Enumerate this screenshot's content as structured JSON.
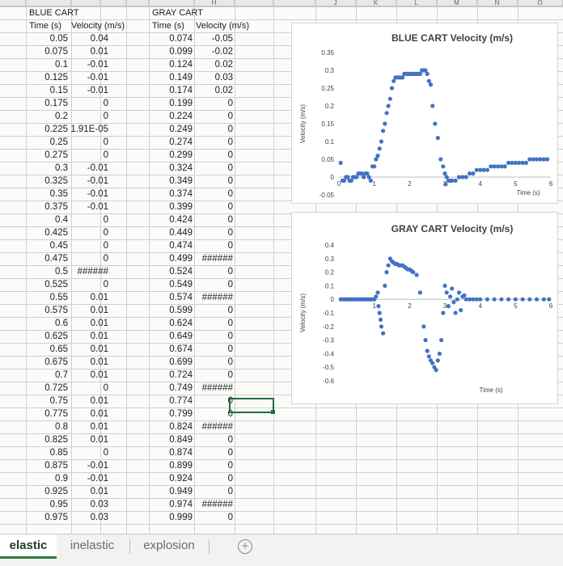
{
  "columns": [
    "",
    "",
    "",
    "",
    "",
    "",
    "H",
    "",
    "",
    "J",
    "K",
    "L",
    "M",
    "N",
    "O"
  ],
  "blue_cart": {
    "title": "BLUE CART",
    "time_header": "Time (s)",
    "velocity_header": "Velocity (m/s)",
    "rows": [
      [
        "0.05",
        "0.04"
      ],
      [
        "0.075",
        "0.01"
      ],
      [
        "0.1",
        "-0.01"
      ],
      [
        "0.125",
        "-0.01"
      ],
      [
        "0.15",
        "-0.01"
      ],
      [
        "0.175",
        "0"
      ],
      [
        "0.2",
        "0"
      ],
      [
        "0.225",
        "1.91E-05"
      ],
      [
        "0.25",
        "0"
      ],
      [
        "0.275",
        "0"
      ],
      [
        "0.3",
        "-0.01"
      ],
      [
        "0.325",
        "-0.01"
      ],
      [
        "0.35",
        "-0.01"
      ],
      [
        "0.375",
        "-0.01"
      ],
      [
        "0.4",
        "0"
      ],
      [
        "0.425",
        "0"
      ],
      [
        "0.45",
        "0"
      ],
      [
        "0.475",
        "0"
      ],
      [
        "0.5",
        "######"
      ],
      [
        "0.525",
        "0"
      ],
      [
        "0.55",
        "0.01"
      ],
      [
        "0.575",
        "0.01"
      ],
      [
        "0.6",
        "0.01"
      ],
      [
        "0.625",
        "0.01"
      ],
      [
        "0.65",
        "0.01"
      ],
      [
        "0.675",
        "0.01"
      ],
      [
        "0.7",
        "0.01"
      ],
      [
        "0.725",
        "0"
      ],
      [
        "0.75",
        "0.01"
      ],
      [
        "0.775",
        "0.01"
      ],
      [
        "0.8",
        "0.01"
      ],
      [
        "0.825",
        "0.01"
      ],
      [
        "0.85",
        "0"
      ],
      [
        "0.875",
        "-0.01"
      ],
      [
        "0.9",
        "-0.01"
      ],
      [
        "0.925",
        "0.01"
      ],
      [
        "0.95",
        "0.03"
      ],
      [
        "0.975",
        "0.03"
      ]
    ]
  },
  "gray_cart": {
    "title": "GRAY CART",
    "time_header": "Time (s)",
    "velocity_header": "Velocity (m/s)",
    "rows": [
      [
        "0.074",
        "-0.05"
      ],
      [
        "0.099",
        "-0.02"
      ],
      [
        "0.124",
        "0.02"
      ],
      [
        "0.149",
        "0.03"
      ],
      [
        "0.174",
        "0.02"
      ],
      [
        "0.199",
        "0"
      ],
      [
        "0.224",
        "0"
      ],
      [
        "0.249",
        "0"
      ],
      [
        "0.274",
        "0"
      ],
      [
        "0.299",
        "0"
      ],
      [
        "0.324",
        "0"
      ],
      [
        "0.349",
        "0"
      ],
      [
        "0.374",
        "0"
      ],
      [
        "0.399",
        "0"
      ],
      [
        "0.424",
        "0"
      ],
      [
        "0.449",
        "0"
      ],
      [
        "0.474",
        "0"
      ],
      [
        "0.499",
        "######"
      ],
      [
        "0.524",
        "0"
      ],
      [
        "0.549",
        "0"
      ],
      [
        "0.574",
        "######"
      ],
      [
        "0.599",
        "0"
      ],
      [
        "0.624",
        "0"
      ],
      [
        "0.649",
        "0"
      ],
      [
        "0.674",
        "0"
      ],
      [
        "0.699",
        "0"
      ],
      [
        "0.724",
        "0"
      ],
      [
        "0.749",
        "######"
      ],
      [
        "0.774",
        "0"
      ],
      [
        "0.799",
        "0"
      ],
      [
        "0.824",
        "######"
      ],
      [
        "0.849",
        "0"
      ],
      [
        "0.874",
        "0"
      ],
      [
        "0.899",
        "0"
      ],
      [
        "0.924",
        "0"
      ],
      [
        "0.949",
        "0"
      ],
      [
        "0.974",
        "######"
      ],
      [
        "0.999",
        "0"
      ]
    ]
  },
  "chart_data": [
    {
      "type": "scatter",
      "title": "BLUE CART Velocity (m/s)",
      "xlabel": "Time (s)",
      "ylabel": "Velocity (m/s)",
      "xlim": [
        0,
        6
      ],
      "ylim": [
        -0.05,
        0.35
      ],
      "yticks": [
        "0.35",
        "0.3",
        "0.25",
        "0.2",
        "0.15",
        "0.1",
        "0.05",
        "0",
        "-0.05"
      ],
      "xticks": [
        "0",
        "1",
        "2",
        "3",
        "4",
        "5",
        "6"
      ],
      "grid": false,
      "color": "#4472c4",
      "x": [
        0.05,
        0.1,
        0.15,
        0.2,
        0.25,
        0.3,
        0.35,
        0.4,
        0.45,
        0.5,
        0.55,
        0.6,
        0.65,
        0.7,
        0.75,
        0.8,
        0.85,
        0.9,
        0.95,
        1.0,
        1.05,
        1.1,
        1.15,
        1.2,
        1.25,
        1.3,
        1.35,
        1.4,
        1.45,
        1.5,
        1.55,
        1.6,
        1.65,
        1.7,
        1.75,
        1.8,
        1.85,
        1.9,
        1.95,
        2.0,
        2.05,
        2.1,
        2.15,
        2.2,
        2.25,
        2.3,
        2.35,
        2.4,
        2.45,
        2.5,
        2.55,
        2.6,
        2.65,
        2.72,
        2.8,
        2.88,
        2.95,
        3.0,
        3.02,
        3.05,
        3.1,
        3.15,
        3.2,
        3.3,
        3.4,
        3.5,
        3.6,
        3.7,
        3.8,
        3.9,
        4.0,
        4.1,
        4.2,
        4.3,
        4.4,
        4.5,
        4.6,
        4.7,
        4.8,
        4.9,
        5.0,
        5.1,
        5.2,
        5.3,
        5.4,
        5.5,
        5.6,
        5.7,
        5.8,
        5.9
      ],
      "y": [
        0.04,
        -0.01,
        -0.01,
        0.0,
        0.0,
        -0.01,
        -0.01,
        0.0,
        0.0,
        0.0,
        0.01,
        0.01,
        0.01,
        0.0,
        0.01,
        0.01,
        0.0,
        -0.01,
        0.03,
        0.03,
        0.05,
        0.06,
        0.08,
        0.1,
        0.13,
        0.15,
        0.18,
        0.2,
        0.22,
        0.25,
        0.27,
        0.28,
        0.28,
        0.28,
        0.28,
        0.28,
        0.29,
        0.29,
        0.29,
        0.29,
        0.29,
        0.29,
        0.29,
        0.29,
        0.29,
        0.29,
        0.3,
        0.3,
        0.3,
        0.29,
        0.27,
        0.26,
        0.2,
        0.15,
        0.11,
        0.05,
        0.03,
        0.01,
        -0.02,
        0.0,
        -0.01,
        -0.01,
        -0.01,
        -0.01,
        0.0,
        0.0,
        0.0,
        0.01,
        0.01,
        0.02,
        0.02,
        0.02,
        0.02,
        0.03,
        0.03,
        0.03,
        0.03,
        0.03,
        0.04,
        0.04,
        0.04,
        0.04,
        0.04,
        0.04,
        0.05,
        0.05,
        0.05,
        0.05,
        0.05,
        0.05
      ]
    },
    {
      "type": "scatter",
      "title": "GRAY CART Velocity (m/s)",
      "xlabel": "Time (s)",
      "ylabel": "Velocity (m/s)",
      "xlim": [
        0,
        6
      ],
      "ylim": [
        -0.6,
        0.4
      ],
      "yticks": [
        "0.4",
        "0.3",
        "0.2",
        "0.1",
        "0",
        "-0.1",
        "-0.2",
        "-0.3",
        "-0.4",
        "-0.5",
        "-0.6"
      ],
      "xticks": [
        "1",
        "2",
        "3",
        "4",
        "5",
        "6"
      ],
      "grid": false,
      "color": "#4472c4",
      "x": [
        0.05,
        0.1,
        0.15,
        0.2,
        0.25,
        0.3,
        0.35,
        0.4,
        0.45,
        0.5,
        0.55,
        0.6,
        0.65,
        0.7,
        0.75,
        0.8,
        0.85,
        0.9,
        0.95,
        1.0,
        1.05,
        1.1,
        1.12,
        1.15,
        1.18,
        1.2,
        1.25,
        1.3,
        1.35,
        1.4,
        1.45,
        1.5,
        1.55,
        1.6,
        1.65,
        1.7,
        1.75,
        1.8,
        1.85,
        1.9,
        1.95,
        2.0,
        2.05,
        2.1,
        2.2,
        2.3,
        2.4,
        2.45,
        2.5,
        2.55,
        2.6,
        2.65,
        2.7,
        2.75,
        2.8,
        2.85,
        2.9,
        2.95,
        3.0,
        3.05,
        3.1,
        3.15,
        3.2,
        3.25,
        3.3,
        3.35,
        3.4,
        3.45,
        3.5,
        3.55,
        3.6,
        3.7,
        3.8,
        3.9,
        4.0,
        4.2,
        4.4,
        4.6,
        4.8,
        5.0,
        5.2,
        5.4,
        5.6,
        5.8,
        5.95
      ],
      "y": [
        0.0,
        0.0,
        0.0,
        0.0,
        0.0,
        0.0,
        0.0,
        0.0,
        0.0,
        0.0,
        0.0,
        0.0,
        0.0,
        0.0,
        0.0,
        0.0,
        0.0,
        0.0,
        0.0,
        0.0,
        0.02,
        0.05,
        -0.05,
        -0.1,
        -0.15,
        -0.2,
        -0.25,
        0.1,
        0.2,
        0.25,
        0.3,
        0.28,
        0.27,
        0.26,
        0.26,
        0.25,
        0.25,
        0.25,
        0.24,
        0.23,
        0.22,
        0.22,
        0.21,
        0.2,
        0.18,
        0.05,
        -0.2,
        -0.3,
        -0.38,
        -0.42,
        -0.45,
        -0.47,
        -0.5,
        -0.52,
        -0.45,
        -0.4,
        -0.3,
        -0.1,
        0.1,
        0.05,
        -0.05,
        0.02,
        0.08,
        -0.02,
        -0.1,
        0.0,
        0.05,
        -0.08,
        0.02,
        0.03,
        0.0,
        0.0,
        0.0,
        0.0,
        0.0,
        0.0,
        0.0,
        0.0,
        0.0,
        0.0,
        0.0,
        0.0,
        0.0,
        0.0,
        0.0
      ]
    }
  ],
  "tabs": [
    {
      "label": "elastic",
      "active": true
    },
    {
      "label": "inelastic",
      "active": false
    },
    {
      "label": "explosion",
      "active": false
    }
  ],
  "add_sheet_symbol": "+"
}
